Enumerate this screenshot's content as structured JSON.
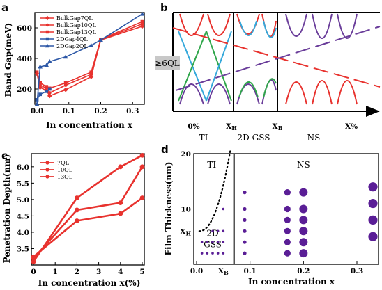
{
  "panels": {
    "a": "a",
    "b": "b",
    "c": "c",
    "d": "d"
  },
  "chart_data": [
    {
      "id": "a",
      "type": "line",
      "xlabel": "In concentration x",
      "ylabel": "Band Gap(meV)",
      "xlim": [
        0,
        0.33
      ],
      "ylim": [
        100,
        700
      ],
      "xticks": [
        0.0,
        0.1,
        0.2,
        0.3
      ],
      "xtick_labels": [
        "0.0",
        "0.1",
        "0.2",
        "0.3"
      ],
      "yticks": [
        200,
        400,
        600
      ],
      "ytick_labels": [
        "200",
        "400",
        "600"
      ],
      "legend_position": "top-left",
      "colors": {
        "red": "#e8322e",
        "blue": "#2c57a6"
      },
      "series": [
        {
          "name": "BulkGap7QL",
          "color": "#e8322e",
          "marker": "diamond",
          "x": [
            0,
            0.01,
            0.03,
            0.04,
            0.09,
            0.17,
            0.2,
            0.33
          ],
          "y": [
            300,
            210,
            190,
            155,
            195,
            280,
            520,
            610
          ]
        },
        {
          "name": "BulkGap10QL",
          "color": "#e8322e",
          "marker": "circle",
          "x": [
            0,
            0.01,
            0.03,
            0.04,
            0.09,
            0.17,
            0.2,
            0.33
          ],
          "y": [
            305,
            225,
            205,
            175,
            225,
            295,
            522,
            625
          ]
        },
        {
          "name": "BulkGap13QL",
          "color": "#e8322e",
          "marker": "square",
          "x": [
            0,
            0.01,
            0.03,
            0.04,
            0.09,
            0.17,
            0.2,
            0.33
          ],
          "y": [
            310,
            240,
            215,
            205,
            240,
            310,
            525,
            640
          ]
        },
        {
          "name": "2DGap4QL",
          "color": "#2c57a6",
          "marker": "square",
          "x": [
            0,
            0.01,
            0.03,
            0.04
          ],
          "y": [
            130,
            165,
            185,
            200
          ]
        },
        {
          "name": "2DGap2QL",
          "color": "#2c57a6",
          "marker": "triangle",
          "x": [
            0,
            0.01,
            0.03,
            0.04,
            0.09,
            0.17,
            0.2,
            0.33
          ],
          "y": [
            100,
            345,
            355,
            380,
            410,
            485,
            520,
            690
          ]
        }
      ]
    },
    {
      "id": "b",
      "type": "diagram",
      "badge": "≥6QL",
      "xtick_labels": [
        "0%",
        "X",
        "X",
        "X%"
      ],
      "xtick_subscripts": [
        "",
        "H",
        "B",
        ""
      ],
      "region_labels": [
        "TI",
        "2D GSS",
        "NS"
      ],
      "colors": {
        "red": "#e8322e",
        "blue": "#34a8db",
        "green": "#2fa64a",
        "purple": "#6a3d9a",
        "badge": "#c8c8c8"
      }
    },
    {
      "id": "c",
      "type": "line",
      "xlabel": "In concentration x(%)",
      "ylabel": "Penetration Depth(nm)",
      "xlim": [
        0,
        5
      ],
      "ylim": [
        3.0,
        6.4
      ],
      "xticks": [
        0,
        1,
        2,
        3,
        4,
        5
      ],
      "xtick_labels": [
        "0",
        "1",
        "2",
        "3",
        "4",
        "5"
      ],
      "yticks": [
        3.5,
        4.0,
        4.5,
        5.0,
        5.5,
        6.0
      ],
      "ytick_labels": [
        "3.5",
        "4.0",
        "4.5",
        "5.0",
        "5.5",
        "6.0"
      ],
      "legend_position": "top-left",
      "series": [
        {
          "name": "7QL",
          "color": "#e8322e",
          "marker": "circle",
          "x": [
            0,
            2,
            4,
            5
          ],
          "y": [
            3.1,
            5.05,
            6.0,
            6.35
          ]
        },
        {
          "name": "10QL",
          "color": "#e8322e",
          "marker": "circle",
          "x": [
            0,
            2,
            4,
            5
          ],
          "y": [
            3.2,
            4.68,
            4.9,
            6.0
          ]
        },
        {
          "name": "13QL",
          "color": "#e8322e",
          "marker": "circle",
          "x": [
            0,
            2,
            4,
            5
          ],
          "y": [
            3.25,
            4.35,
            4.57,
            5.05
          ]
        }
      ]
    },
    {
      "id": "d",
      "type": "scatter",
      "xlabel": "In concentration x",
      "ylabel": "Film Thickness(nm)",
      "xlim": [
        0,
        0.33
      ],
      "ylim": [
        0,
        20
      ],
      "xticks": [
        0.0,
        0.1,
        0.2,
        0.3
      ],
      "xtick_labels": [
        "0.0",
        "0.1",
        "0.2",
        "0.3"
      ],
      "yticks": [
        10,
        20
      ],
      "ytick_labels": [
        "10",
        "20"
      ],
      "extra_ticks": {
        "x_label": "X",
        "x_sub": "B",
        "y_label": "X",
        "y_sub": "H"
      },
      "x_boundary": 0.07,
      "region_labels": {
        "ti": "TI",
        "ns": "NS",
        "gss_top": "2D",
        "gss_bottom": "GSS"
      },
      "color": "#5a1e96",
      "points": [
        {
          "x": 0.01,
          "y": 2,
          "s": 1
        },
        {
          "x": 0.02,
          "y": 2,
          "s": 1
        },
        {
          "x": 0.03,
          "y": 2,
          "s": 1
        },
        {
          "x": 0.04,
          "y": 2,
          "s": 1
        },
        {
          "x": 0.05,
          "y": 2,
          "s": 1
        },
        {
          "x": 0.01,
          "y": 4,
          "s": 1
        },
        {
          "x": 0.02,
          "y": 4,
          "s": 1
        },
        {
          "x": 0.03,
          "y": 4,
          "s": 1
        },
        {
          "x": 0.04,
          "y": 4,
          "s": 1
        },
        {
          "x": 0.05,
          "y": 4,
          "s": 1
        },
        {
          "x": 0.03,
          "y": 6,
          "s": 1
        },
        {
          "x": 0.04,
          "y": 6,
          "s": 1
        },
        {
          "x": 0.05,
          "y": 6,
          "s": 1
        },
        {
          "x": 0.05,
          "y": 10,
          "s": 1
        },
        {
          "x": 0.09,
          "y": 2,
          "s": 2
        },
        {
          "x": 0.09,
          "y": 4,
          "s": 2
        },
        {
          "x": 0.09,
          "y": 6,
          "s": 2
        },
        {
          "x": 0.09,
          "y": 8,
          "s": 2
        },
        {
          "x": 0.09,
          "y": 10,
          "s": 2
        },
        {
          "x": 0.09,
          "y": 13,
          "s": 2
        },
        {
          "x": 0.17,
          "y": 2,
          "s": 3
        },
        {
          "x": 0.17,
          "y": 4,
          "s": 3
        },
        {
          "x": 0.17,
          "y": 6,
          "s": 3
        },
        {
          "x": 0.17,
          "y": 8,
          "s": 3
        },
        {
          "x": 0.17,
          "y": 10,
          "s": 3
        },
        {
          "x": 0.17,
          "y": 13,
          "s": 3
        },
        {
          "x": 0.2,
          "y": 2,
          "s": 4
        },
        {
          "x": 0.2,
          "y": 4,
          "s": 4
        },
        {
          "x": 0.2,
          "y": 6,
          "s": 4
        },
        {
          "x": 0.2,
          "y": 8,
          "s": 4
        },
        {
          "x": 0.2,
          "y": 10,
          "s": 4
        },
        {
          "x": 0.2,
          "y": 13,
          "s": 4
        },
        {
          "x": 0.33,
          "y": 5,
          "s": 5
        },
        {
          "x": 0.33,
          "y": 8,
          "s": 5
        },
        {
          "x": 0.33,
          "y": 11,
          "s": 5
        },
        {
          "x": 0.33,
          "y": 14,
          "s": 5
        }
      ]
    }
  ]
}
